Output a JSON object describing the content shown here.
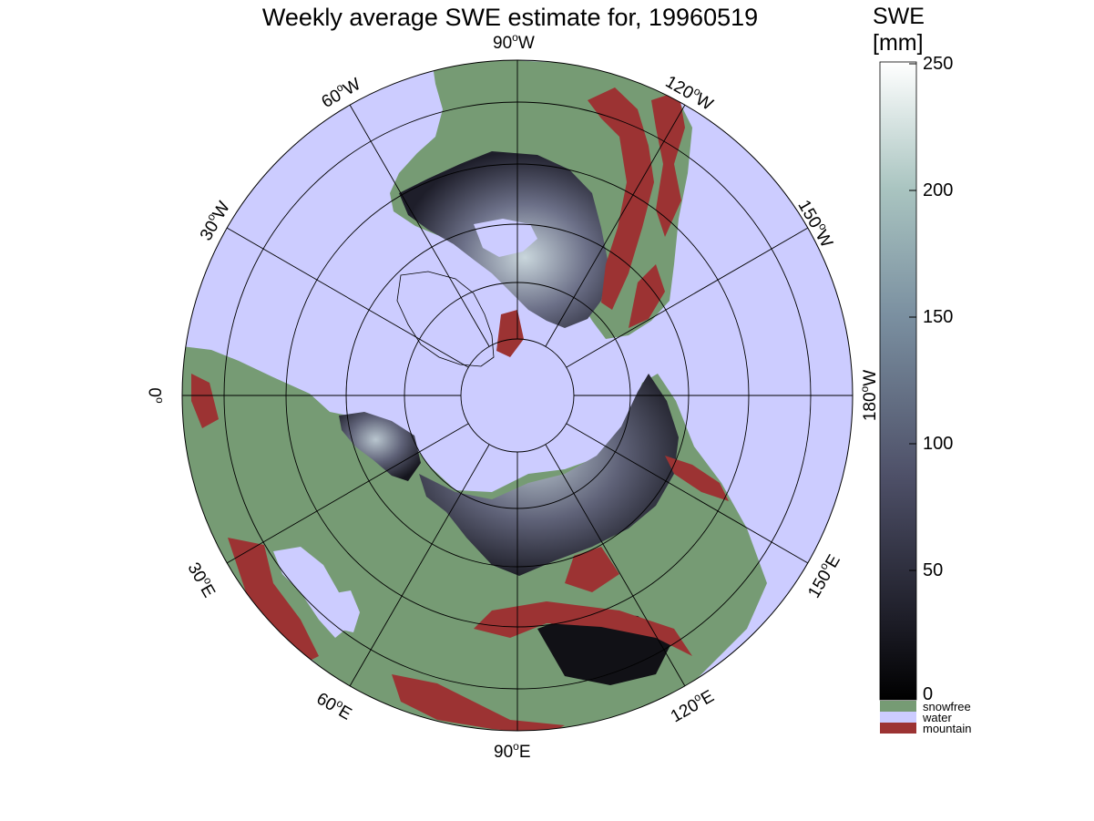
{
  "title": "Weekly average SWE estimate for, 19960519",
  "colorbar": {
    "title_line1": "SWE",
    "title_line2": "[mm]",
    "ticks": [
      "250",
      "200",
      "150",
      "100",
      "50",
      "0"
    ],
    "range_mm": [
      0,
      250
    ],
    "colors": {
      "top": "#ffffff",
      "mid_high": "#a9c4c0",
      "mid": "#6a7088",
      "low": "#2a2a38",
      "bottom": "#000000"
    },
    "categories": [
      {
        "label": "snowfree",
        "color": "#769b74"
      },
      {
        "label": "water",
        "color": "#ccccff"
      },
      {
        "label": "mountain",
        "color": "#9c3333"
      }
    ]
  },
  "map": {
    "projection": "north-polar-stereographic",
    "longitude_labels": [
      {
        "deg": "90",
        "hemi": "W"
      },
      {
        "deg": "120",
        "hemi": "W"
      },
      {
        "deg": "150",
        "hemi": "W"
      },
      {
        "deg": "180",
        "hemi": "W"
      },
      {
        "deg": "150",
        "hemi": "E"
      },
      {
        "deg": "120",
        "hemi": "E"
      },
      {
        "deg": "90",
        "hemi": "E"
      },
      {
        "deg": "60",
        "hemi": "E"
      },
      {
        "deg": "30",
        "hemi": "E"
      },
      {
        "deg": "0",
        "hemi": ""
      },
      {
        "deg": "30",
        "hemi": "W"
      },
      {
        "deg": "60",
        "hemi": "W"
      }
    ],
    "colors": {
      "ocean": "#ccccff",
      "land": "#769b74",
      "mountain": "#9c3333",
      "snow_dark": "#1a1a22",
      "snow_light": "#b8c8d0"
    }
  }
}
